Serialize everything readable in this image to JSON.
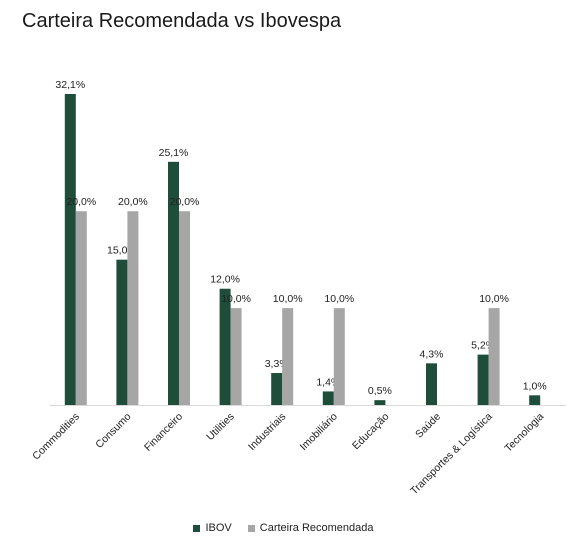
{
  "chart_data": {
    "type": "bar",
    "title": "Carteira Recomendada vs Ibovespa",
    "categories": [
      "Commodities",
      "Consumo",
      "Financeiro",
      "Utilities",
      "Industriais",
      "Imobiliário",
      "Educação",
      "Saúde",
      "Transportes & Logística",
      "Tecnologia"
    ],
    "series": [
      {
        "name": "IBOV",
        "color": "#1e4d3a",
        "values": [
          32.1,
          15.0,
          25.1,
          12.0,
          3.3,
          1.4,
          0.5,
          4.3,
          5.2,
          1.0
        ],
        "labels": [
          "32,1%",
          "15,0%",
          "25,1%",
          "12,0%",
          "3,3%",
          "1,4%",
          "0,5%",
          "4,3%",
          "5,2%",
          "1,0%"
        ]
      },
      {
        "name": "Carteira Recomendada",
        "color": "#a6a6a6",
        "values": [
          20.0,
          20.0,
          20.0,
          10.0,
          10.0,
          10.0,
          null,
          null,
          10.0,
          null
        ],
        "labels": [
          "20,0%",
          "20,0%",
          "20,0%",
          "10,0%",
          "10,0%",
          "10,0%",
          "",
          "",
          "10,0%",
          ""
        ]
      }
    ],
    "ylim": [
      0,
      32.1
    ],
    "grid": false,
    "legend": "bottom"
  }
}
